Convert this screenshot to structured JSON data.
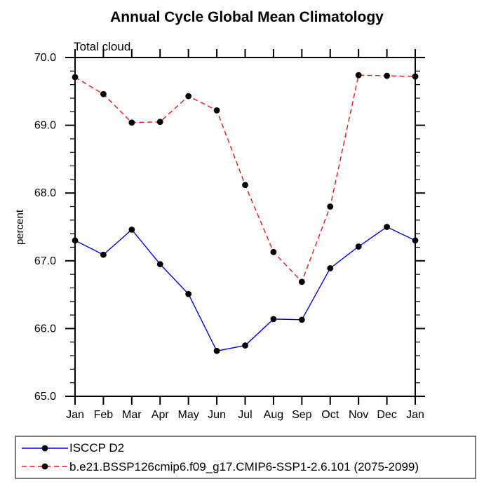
{
  "chart_data": {
    "type": "line",
    "title": "Annual Cycle Global Mean Climatology",
    "subtitle": "Total cloud",
    "xlabel": "",
    "ylabel": "percent",
    "categories": [
      "Jan",
      "Feb",
      "Mar",
      "Apr",
      "May",
      "Jun",
      "Jul",
      "Aug",
      "Sep",
      "Oct",
      "Nov",
      "Dec",
      "Jan"
    ],
    "ylim": [
      65.0,
      70.0
    ],
    "ytick_labels": [
      "65.0",
      "66.0",
      "67.0",
      "68.0",
      "69.0",
      "70.0"
    ],
    "ytick_values": [
      65.0,
      66.0,
      67.0,
      68.0,
      69.0,
      70.0
    ],
    "ytick_minor_step": 0.2,
    "grid": false,
    "legend_position": "bottom-left-box",
    "axis_color": "#000000",
    "marker": "filled-circle",
    "marker_color": "#000000",
    "series": [
      {
        "name": "ISCCP D2",
        "color": "#0000e6",
        "style": "solid",
        "values": [
          67.3,
          67.09,
          67.46,
          66.95,
          66.51,
          65.67,
          65.75,
          66.14,
          66.13,
          66.89,
          67.21,
          67.5,
          67.3
        ]
      },
      {
        "name": "b.e21.BSSP126cmip6.f09_g17.CMIP6-SSP1-2.6.101 (2075-2099)",
        "color": "#f01414",
        "style": "dashed",
        "values": [
          69.71,
          69.46,
          69.04,
          69.05,
          69.43,
          69.22,
          68.12,
          67.13,
          66.69,
          67.8,
          69.74,
          69.73,
          69.72
        ]
      }
    ]
  }
}
